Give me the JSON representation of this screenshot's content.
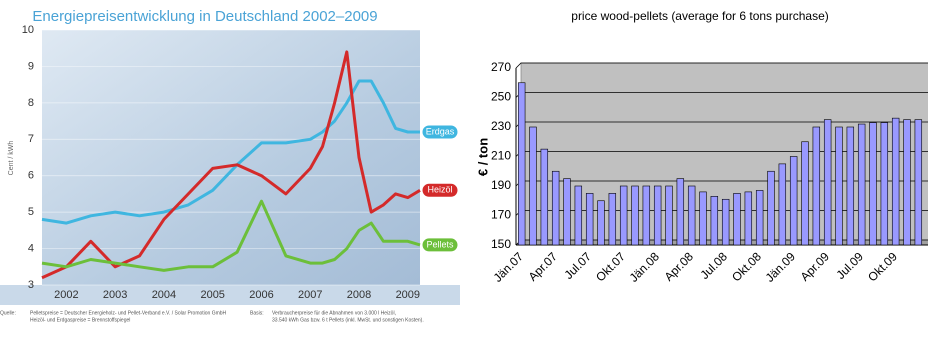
{
  "chart_data": [
    {
      "type": "line",
      "title": "Energiepreisentwicklung in Deutschland 2002–2009",
      "y_label": "Cent / kWh",
      "x": [
        2002,
        2002.5,
        2003,
        2003.5,
        2004,
        2004.5,
        2005,
        2005.5,
        2006,
        2006.5,
        2007,
        2007.5,
        2007.75,
        2008,
        2008.25,
        2008.5,
        2008.75,
        2009,
        2009.25,
        2009.5,
        2009.75
      ],
      "series": [
        {
          "name": "Erdgas",
          "color": "#3fb6e0",
          "values": [
            4.8,
            4.7,
            4.9,
            5.0,
            4.9,
            5.0,
            5.2,
            5.6,
            6.3,
            6.9,
            6.9,
            7.0,
            7.2,
            7.5,
            8.0,
            8.6,
            8.6,
            8.0,
            7.3,
            7.2,
            7.2
          ]
        },
        {
          "name": "Heizöl",
          "color": "#d42a2a",
          "values": [
            3.2,
            3.5,
            4.2,
            3.5,
            3.8,
            4.8,
            5.5,
            6.2,
            6.3,
            6.0,
            5.5,
            6.2,
            6.8,
            8.0,
            9.4,
            6.5,
            5.0,
            5.2,
            5.5,
            5.4,
            5.6
          ]
        },
        {
          "name": "Pellets",
          "color": "#6cbf3a",
          "values": [
            3.6,
            3.5,
            3.7,
            3.6,
            3.5,
            3.4,
            3.5,
            3.5,
            3.9,
            5.3,
            3.8,
            3.6,
            3.6,
            3.7,
            4.0,
            4.5,
            4.7,
            4.2,
            4.2,
            4.2,
            4.1
          ]
        }
      ],
      "xlim": [
        2002,
        2009.75
      ],
      "ylim": [
        3,
        10
      ],
      "yticks": [
        3,
        4,
        5,
        6,
        7,
        8,
        9,
        10
      ],
      "xticks": [
        {
          "value": 2002.5,
          "label": "2002"
        },
        {
          "value": 2003.5,
          "label": "2003"
        },
        {
          "value": 2004.5,
          "label": "2004"
        },
        {
          "value": 2005.5,
          "label": "2005"
        },
        {
          "value": 2006.5,
          "label": "2006"
        },
        {
          "value": 2007.5,
          "label": "2007"
        },
        {
          "value": 2008.5,
          "label": "2008"
        },
        {
          "value": 2009.5,
          "label": "2009"
        }
      ],
      "grid": true,
      "source": [
        "Quelle:",
        "Pelletspreise = Deutscher Energieholz- und Pellet-Verband e.V. / Solar Promotion GmbH",
        "Heizöl- und Erdgaspreise = Brennstoffspiegel",
        "Basis:",
        "Verbraucherpreise für die Abnahmen von 3.000 l Heizöl,",
        "33.540 kWh Gas bzw. 6 t Pellets (inkl. MwSt. und sonstigen Kosten)."
      ]
    },
    {
      "type": "bar",
      "title": "price wood-pellets (average for 6 tons purchase)",
      "y_label": "€ / ton",
      "categories": [
        "Jän.07",
        null,
        null,
        "Apr.07",
        null,
        null,
        "Jul.07",
        null,
        null,
        "Okt.07",
        null,
        null,
        "Jän.08",
        null,
        null,
        "Apr.08",
        null,
        null,
        "Jul.08",
        null,
        null,
        "Okt.08",
        null,
        null,
        "Jän.09",
        null,
        null,
        "Apr.09",
        null,
        null,
        "Jul.09",
        null,
        null,
        "Okt.09",
        null,
        null
      ],
      "values": [
        260,
        230,
        215,
        200,
        195,
        190,
        185,
        180,
        185,
        190,
        190,
        190,
        190,
        190,
        195,
        190,
        186,
        183,
        181,
        185,
        186,
        187,
        200,
        205,
        210,
        220,
        230,
        235,
        230,
        230,
        232,
        233,
        233,
        236,
        235,
        235
      ],
      "color": "#9999ff",
      "ylim": [
        150,
        270
      ],
      "yticks": [
        150,
        170,
        190,
        210,
        230,
        250,
        270
      ],
      "grid": true
    }
  ]
}
